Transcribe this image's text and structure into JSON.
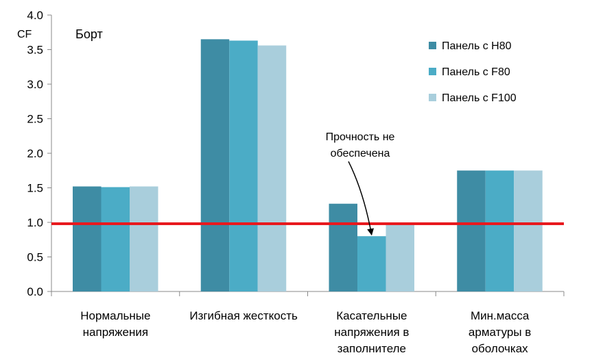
{
  "chart_data": {
    "type": "bar",
    "title": "Борт",
    "ylabel": "CF",
    "xlabel": "",
    "ylim": [
      0,
      4.0
    ],
    "yticks": [
      "0.0",
      "0.5",
      "1.0",
      "1.5",
      "2.0",
      "2.5",
      "3.0",
      "3.5",
      "4.0"
    ],
    "grid": false,
    "legend_position": "top-right",
    "categories": [
      [
        "Нормальные",
        "напряжения"
      ],
      [
        "Изгибная жесткость"
      ],
      [
        "Касательные",
        "напряжения в",
        "заполнителе"
      ],
      [
        "Мин.масса",
        "арматуры в",
        "оболочках"
      ]
    ],
    "series": [
      {
        "name": "Панель с H80",
        "color": "#3E8CA4",
        "values": [
          1.52,
          3.65,
          1.27,
          1.75
        ]
      },
      {
        "name": "Панель с F80",
        "color": "#4BACC6",
        "values": [
          1.51,
          3.63,
          0.8,
          1.75
        ]
      },
      {
        "name": "Панель с F100",
        "color": "#A9CEDC",
        "values": [
          1.52,
          3.56,
          0.97,
          1.75
        ]
      }
    ],
    "reference_line": {
      "value": 0.98,
      "color": "#E8191E"
    },
    "annotation": {
      "text": [
        "Прочность не",
        "обеспечена"
      ],
      "target_category": 2,
      "target_series": 1
    }
  }
}
